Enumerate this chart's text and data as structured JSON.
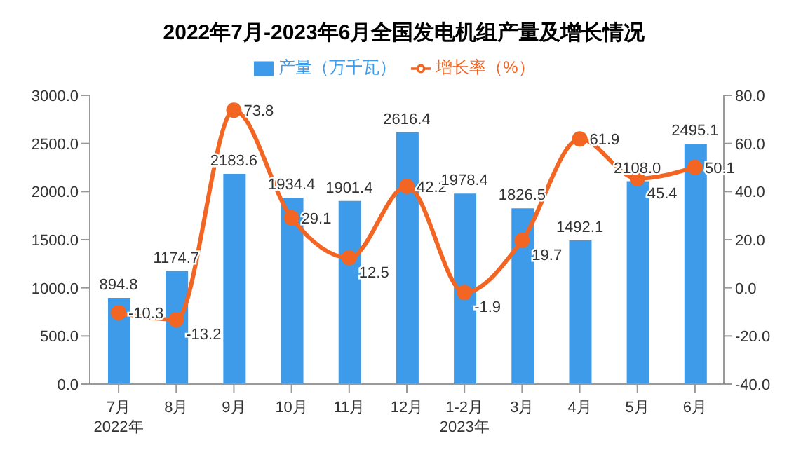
{
  "chart_data": {
    "type": "bar",
    "title": "2022年7月-2023年6月全国发电机组产量及增长情况",
    "categories": [
      "7月\n2022年",
      "8月",
      "9月",
      "10月",
      "11月",
      "12月",
      "1-2月\n2023年",
      "3月",
      "4月",
      "5月",
      "6月"
    ],
    "series": [
      {
        "name": "产量（万千瓦）",
        "color": "#3d9be9",
        "values": [
          894.8,
          1174.7,
          2183.6,
          1934.4,
          1901.4,
          2616.4,
          1978.4,
          1826.5,
          1492.1,
          2108.0,
          2495.1
        ],
        "value_labels": [
          "894.8",
          "1174.7",
          "2183.6",
          "1934.4",
          "1901.4",
          "2616.4",
          "1978.4",
          "1826.5",
          "1492.1",
          "2108.0",
          "2495.1"
        ]
      },
      {
        "name": "增长率（%）",
        "type": "line",
        "axis": "y2",
        "color": "#f26522",
        "values": [
          -10.3,
          -13.2,
          73.8,
          29.1,
          12.5,
          42.2,
          -1.9,
          19.7,
          61.9,
          45.4,
          50.1
        ],
        "value_labels": [
          "-10.3",
          "-13.2",
          "73.8",
          "29.1",
          "12.5",
          "42.2",
          "-1.9",
          "19.7",
          "61.9",
          "45.4",
          "50.1"
        ]
      }
    ],
    "ylim": [
      0,
      3000
    ],
    "yticks": [
      {
        "value": 0,
        "label": "0.0"
      },
      {
        "value": 500,
        "label": "500.0"
      },
      {
        "value": 1000,
        "label": "1000.0"
      },
      {
        "value": 1500,
        "label": "1500.0"
      },
      {
        "value": 2000,
        "label": "2000.0"
      },
      {
        "value": 2500,
        "label": "2500.0"
      },
      {
        "value": 3000,
        "label": "3000.0"
      }
    ],
    "y2lim": [
      -40,
      80
    ],
    "y2ticks": [
      {
        "value": -40,
        "label": "-40.0"
      },
      {
        "value": -20,
        "label": "-20.0"
      },
      {
        "value": 0,
        "label": "0.0"
      },
      {
        "value": 20,
        "label": "20.0"
      },
      {
        "value": 40,
        "label": "40.0"
      },
      {
        "value": 60,
        "label": "60.0"
      },
      {
        "value": 80,
        "label": "80.0"
      }
    ],
    "legend": "top",
    "marker": "circle",
    "grid": false
  }
}
